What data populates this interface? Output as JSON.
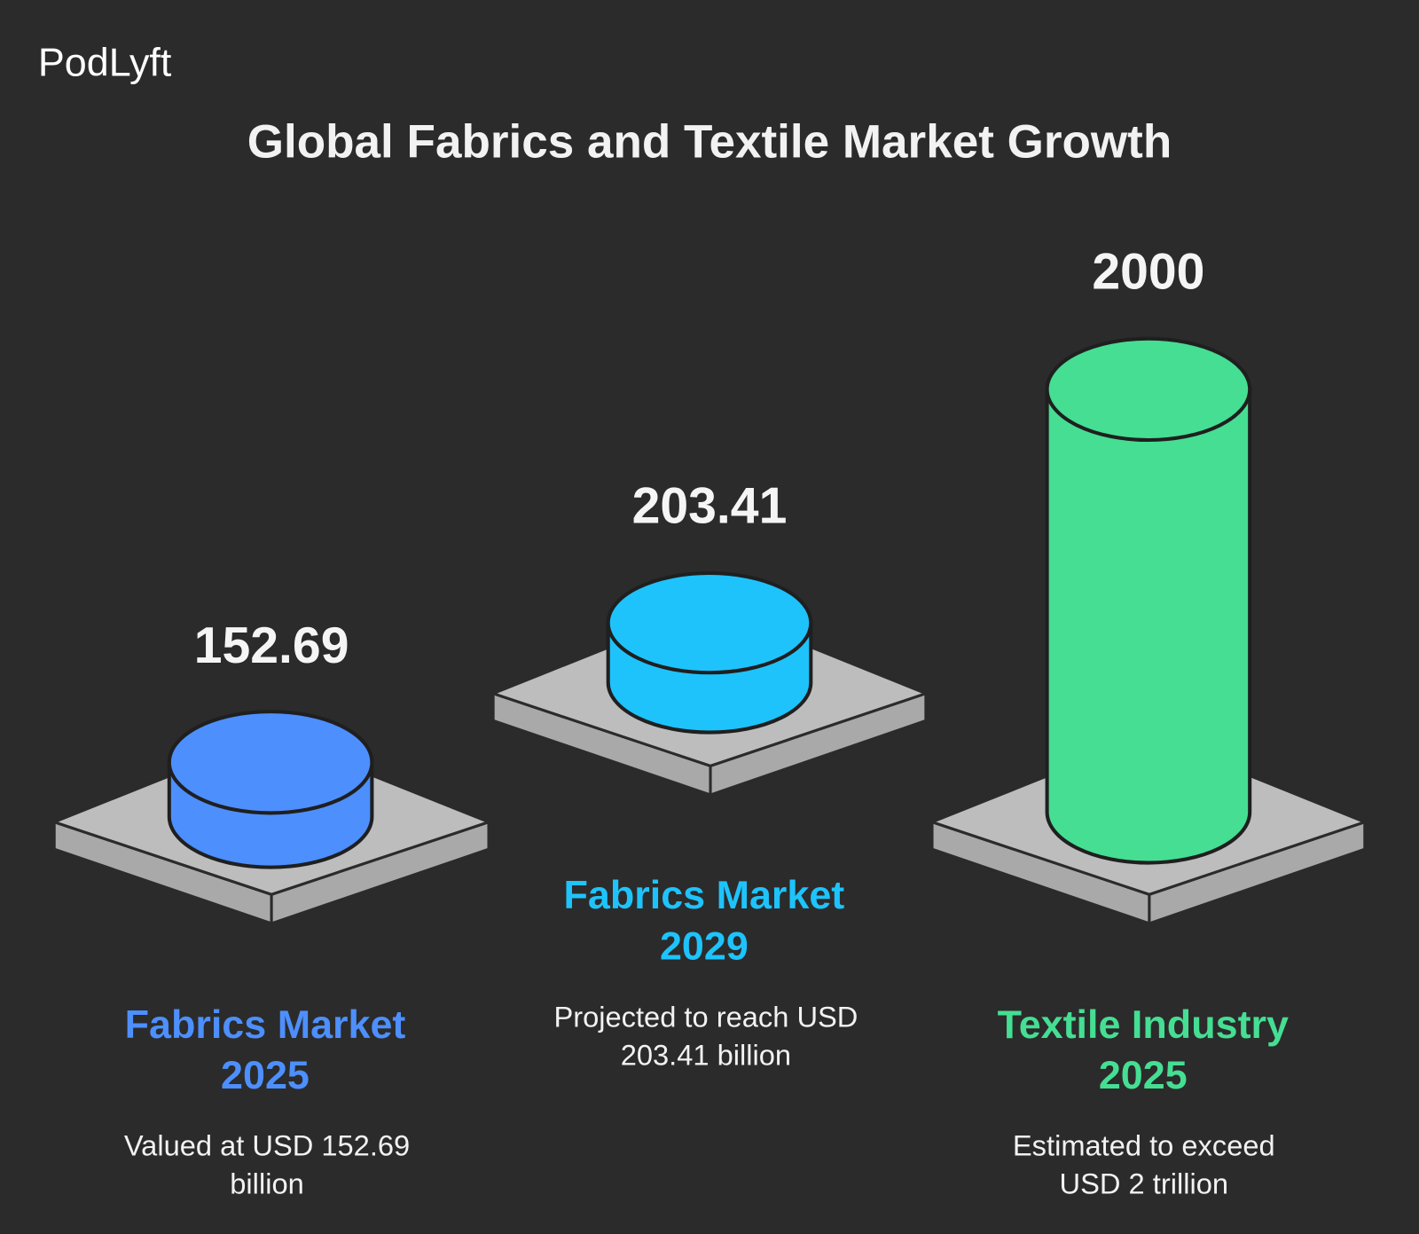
{
  "brand": "PodLyft",
  "title": "Global Fabrics and Textile Market Growth",
  "items": [
    {
      "value": "152.69",
      "label": "Fabrics Market",
      "year": "2025",
      "description": [
        "Valued at USD 152.69",
        "billion"
      ],
      "color": "#4d8ffc"
    },
    {
      "value": "203.41",
      "label": "Fabrics Market",
      "year": "2029",
      "description": [
        "Projected to reach USD",
        "203.41 billion"
      ],
      "color": "#1ec3fc"
    },
    {
      "value": "2000",
      "label": "Textile Industry",
      "year": "2025",
      "description": [
        "Estimated to exceed",
        "USD 2 trillion"
      ],
      "color": "#45de93"
    }
  ]
}
